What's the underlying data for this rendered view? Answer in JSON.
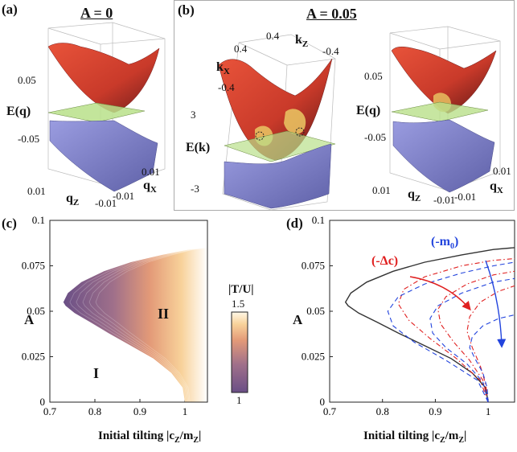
{
  "figure": {
    "panel_a": {
      "label": "(a)",
      "title": "A = 0",
      "z_axis_label": "E(q)",
      "z_ticks": [
        "0.05",
        "-0.05"
      ],
      "left_axis_label": "q",
      "left_axis_sub": "Z",
      "right_axis_label": "q",
      "right_axis_sub": "X",
      "left_ticks": [
        "0.01",
        "-0.01"
      ],
      "right_ticks": [
        "0.01",
        "-0.01"
      ]
    },
    "panel_b": {
      "label": "(b)",
      "title": "A = 0.05",
      "left": {
        "top_ticks_kx": [
          "0.4"
        ],
        "top_ticks_kz": [
          "0.4",
          "-0.4"
        ],
        "kx_label": "k",
        "kx_sub": "X",
        "kz_label": "k",
        "kz_sub": "Z",
        "z_axis_label": "E(k)",
        "z_ticks": [
          "-0.4",
          "3",
          "-3"
        ]
      },
      "right": {
        "z_axis_label": "E(q)",
        "z_ticks": [
          "0.05",
          "-0.05"
        ],
        "left_axis_label": "q",
        "left_axis_sub": "Z",
        "right_axis_label": "q",
        "right_axis_sub": "X",
        "left_ticks": [
          "0.01",
          "-0.01"
        ],
        "right_ticks": [
          "0.01",
          "-0.01"
        ]
      }
    },
    "panel_c": {
      "label": "(c)",
      "xlabel": "Initial tilting |c",
      "xlabel_sub1": "Z",
      "xlabel_mid": "/m",
      "xlabel_sub2": "Z",
      "xlabel_end": "|",
      "ylabel": "A",
      "region_I": "I",
      "region_II": "II",
      "colorbar_title": "|T/U|",
      "colorbar_max": "1.5",
      "colorbar_min": "1"
    },
    "panel_d": {
      "label": "(d)",
      "xlabel": "Initial tilting |c",
      "xlabel_sub1": "Z",
      "xlabel_mid": "/m",
      "xlabel_sub2": "Z",
      "xlabel_end": "|",
      "ylabel": "A",
      "annot_red": "(-Δc)",
      "annot_blue": "(-m",
      "annot_blue_sub": "0",
      "annot_blue_end": ")"
    }
  },
  "colors": {
    "red_surface": "#d9442e",
    "blue_surface": "#8a8ccf",
    "green_plane": "#b9e08a",
    "dark_red": "#7a1d1d",
    "curve_red": "#e02020",
    "curve_blue": "#2244dd",
    "boundary": "#333333"
  },
  "chart_data": [
    {
      "type": "area",
      "panel": "(c)",
      "xlabel": "Initial tilting |cZ/mZ|",
      "ylabel": "A",
      "xlim": [
        0.7,
        1.05
      ],
      "ylim": [
        0,
        0.1
      ],
      "xticks": [
        "0.7",
        "0.8",
        "0.9",
        "1"
      ],
      "yticks": [
        "0",
        "0.025",
        "0.05",
        "0.075",
        "0.1"
      ],
      "boundary": {
        "x": [
          1.0,
          0.995,
          0.97,
          0.93,
          0.88,
          0.83,
          0.79,
          0.755,
          0.735,
          0.73,
          0.74,
          0.77,
          0.82,
          0.88,
          0.95,
          1.01,
          1.05
        ],
        "y": [
          0.0,
          0.008,
          0.016,
          0.024,
          0.031,
          0.038,
          0.044,
          0.049,
          0.053,
          0.055,
          0.06,
          0.066,
          0.072,
          0.077,
          0.081,
          0.084,
          0.085
        ]
      },
      "colorbar": {
        "label": "|T/U|",
        "min": 1,
        "max": 1.5
      },
      "regions": [
        "I",
        "II"
      ]
    },
    {
      "type": "line",
      "panel": "(d)",
      "xlabel": "Initial tilting |cZ/mZ|",
      "ylabel": "A",
      "xlim": [
        0.7,
        1.05
      ],
      "ylim": [
        0,
        0.1
      ],
      "xticks": [
        "0.7",
        "0.8",
        "0.9",
        "1"
      ],
      "yticks": [
        "0",
        "0.025",
        "0.05",
        "0.075",
        "0.1"
      ],
      "series": [
        {
          "style": "solid",
          "color": "#333333",
          "x": [
            1.0,
            0.995,
            0.97,
            0.93,
            0.88,
            0.83,
            0.79,
            0.755,
            0.735,
            0.73,
            0.74,
            0.77,
            0.82,
            0.88,
            0.95,
            1.01,
            1.05
          ],
          "y": [
            0.0,
            0.008,
            0.016,
            0.024,
            0.031,
            0.038,
            0.044,
            0.049,
            0.053,
            0.055,
            0.06,
            0.066,
            0.072,
            0.077,
            0.081,
            0.084,
            0.085
          ]
        },
        {
          "style": "dashdot",
          "color": "#e02020",
          "x": [
            1.0,
            0.985,
            0.94,
            0.89,
            0.85,
            0.83,
            0.84,
            0.88,
            0.95,
            1.01,
            1.05
          ],
          "y": [
            0.0,
            0.012,
            0.024,
            0.035,
            0.045,
            0.054,
            0.062,
            0.069,
            0.075,
            0.078,
            0.079
          ]
        },
        {
          "style": "dashdot",
          "color": "#e02020",
          "x": [
            1.0,
            0.99,
            0.965,
            0.935,
            0.91,
            0.905,
            0.92,
            0.96,
            1.01,
            1.05
          ],
          "y": [
            0.0,
            0.012,
            0.023,
            0.033,
            0.043,
            0.051,
            0.058,
            0.065,
            0.07,
            0.072
          ]
        },
        {
          "style": "dashdot",
          "color": "#e02020",
          "x": [
            1.0,
            0.995,
            0.985,
            0.97,
            0.96,
            0.965,
            0.985,
            1.02,
            1.05
          ],
          "y": [
            0.0,
            0.01,
            0.02,
            0.03,
            0.039,
            0.047,
            0.055,
            0.061,
            0.064
          ]
        },
        {
          "style": "dashed",
          "color": "#2244dd",
          "x": [
            1.0,
            0.98,
            0.92,
            0.86,
            0.82,
            0.81,
            0.83,
            0.88,
            0.95,
            1.01,
            1.05
          ],
          "y": [
            0.0,
            0.012,
            0.023,
            0.033,
            0.042,
            0.05,
            0.058,
            0.065,
            0.071,
            0.075,
            0.077
          ]
        },
        {
          "style": "dashed",
          "color": "#2244dd",
          "x": [
            1.0,
            0.99,
            0.96,
            0.92,
            0.895,
            0.89,
            0.905,
            0.95,
            1.01,
            1.05
          ],
          "y": [
            0.0,
            0.011,
            0.021,
            0.03,
            0.038,
            0.046,
            0.053,
            0.06,
            0.066,
            0.068
          ]
        },
        {
          "style": "dashed",
          "color": "#2244dd",
          "x": [
            1.0,
            0.998,
            0.99,
            0.975,
            0.965,
            0.97,
            0.99,
            1.02,
            1.05
          ],
          "y": [
            0.0,
            0.008,
            0.016,
            0.024,
            0.03,
            0.036,
            0.042,
            0.046,
            0.048
          ]
        }
      ],
      "annotations": [
        "(-Δc)",
        "(-m0)"
      ]
    }
  ]
}
